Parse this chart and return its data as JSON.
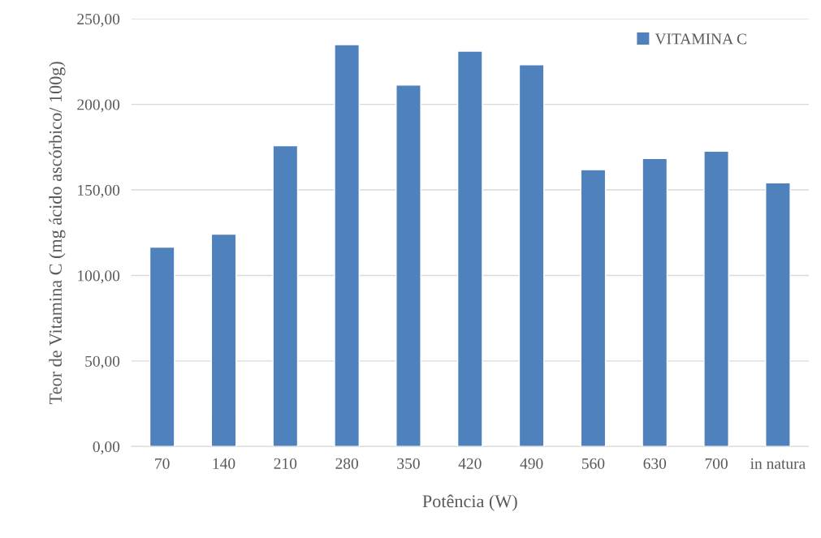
{
  "chart_data": {
    "type": "bar",
    "xlabel": "Potência (W)",
    "ylabel": "Teor de Vitamina C (mg ácido ascórbico/ 100g)",
    "categories": [
      "70",
      "140",
      "210",
      "280",
      "350",
      "420",
      "490",
      "560",
      "630",
      "700",
      "in natura"
    ],
    "series": [
      {
        "name": "VITAMINA C",
        "color": "#4f81bd",
        "values": [
          116.5,
          124.1,
          175.9,
          234.9,
          211.3,
          231.1,
          223.1,
          161.8,
          168.4,
          172.6,
          154.2
        ]
      }
    ],
    "ylim": [
      0,
      250
    ],
    "yticks": [
      {
        "value": 0,
        "label": "0,00"
      },
      {
        "value": 50,
        "label": "50,00"
      },
      {
        "value": 100,
        "label": "100,00"
      },
      {
        "value": 150,
        "label": "150,00"
      },
      {
        "value": 200,
        "label": "200,00"
      },
      {
        "value": 250,
        "label": "250,00"
      }
    ],
    "grid": "y",
    "legend": "top right"
  }
}
